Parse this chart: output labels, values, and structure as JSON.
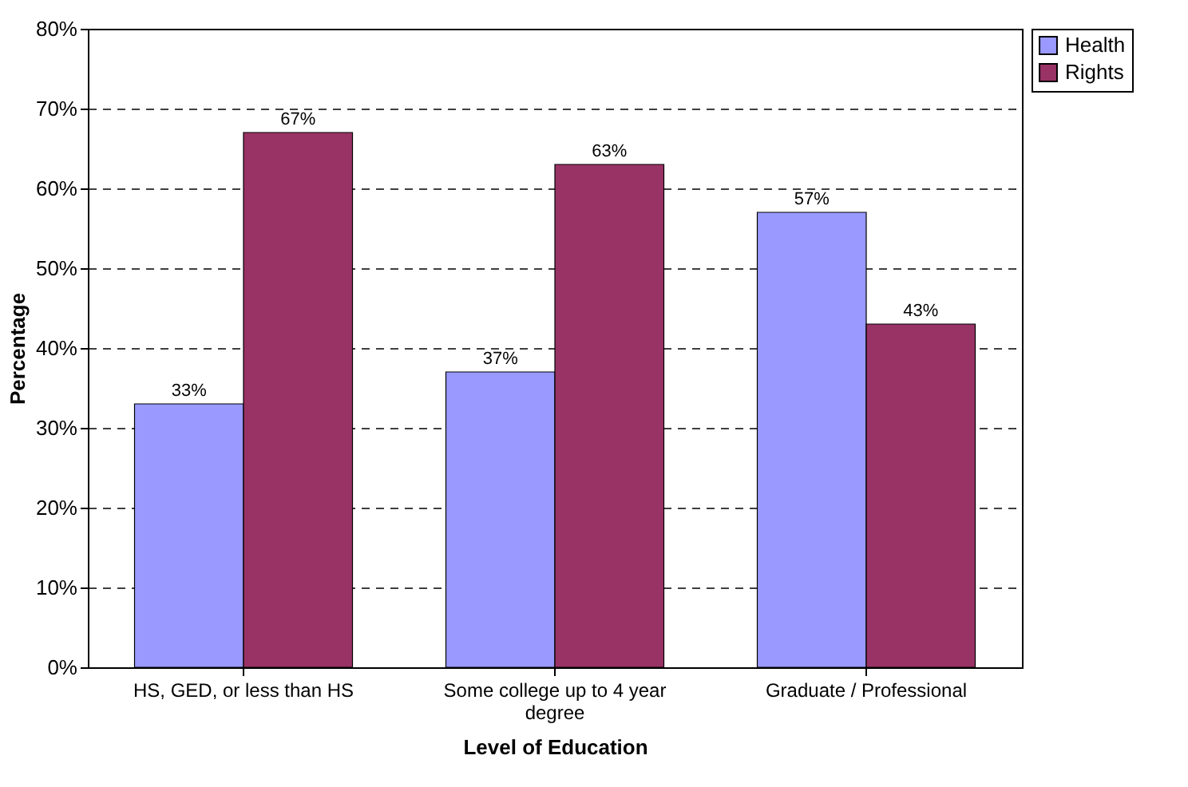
{
  "chart_data": {
    "type": "bar",
    "xlabel": "Level of Education",
    "ylabel": "Percentage",
    "categories": [
      "HS, GED, or less than HS",
      "Some college up to 4 year degree",
      "Graduate / Professional"
    ],
    "series": [
      {
        "name": "Health",
        "color": "#9999ff",
        "values": [
          33,
          37,
          57
        ],
        "value_labels": [
          "33%",
          "37%",
          "57%"
        ]
      },
      {
        "name": "Rights",
        "color": "#993366",
        "values": [
          67,
          63,
          43
        ],
        "value_labels": [
          "67%",
          "63%",
          "43%"
        ]
      }
    ],
    "ylim": [
      0,
      80
    ],
    "yticks": [
      {
        "value": 0,
        "label": "0%"
      },
      {
        "value": 10,
        "label": "10%"
      },
      {
        "value": 20,
        "label": "20%"
      },
      {
        "value": 30,
        "label": "30%"
      },
      {
        "value": 40,
        "label": "40%"
      },
      {
        "value": 50,
        "label": "50%"
      },
      {
        "value": 60,
        "label": "60%"
      },
      {
        "value": 70,
        "label": "70%"
      },
      {
        "value": 80,
        "label": "80%"
      }
    ],
    "grid": "y",
    "legend": "right"
  }
}
